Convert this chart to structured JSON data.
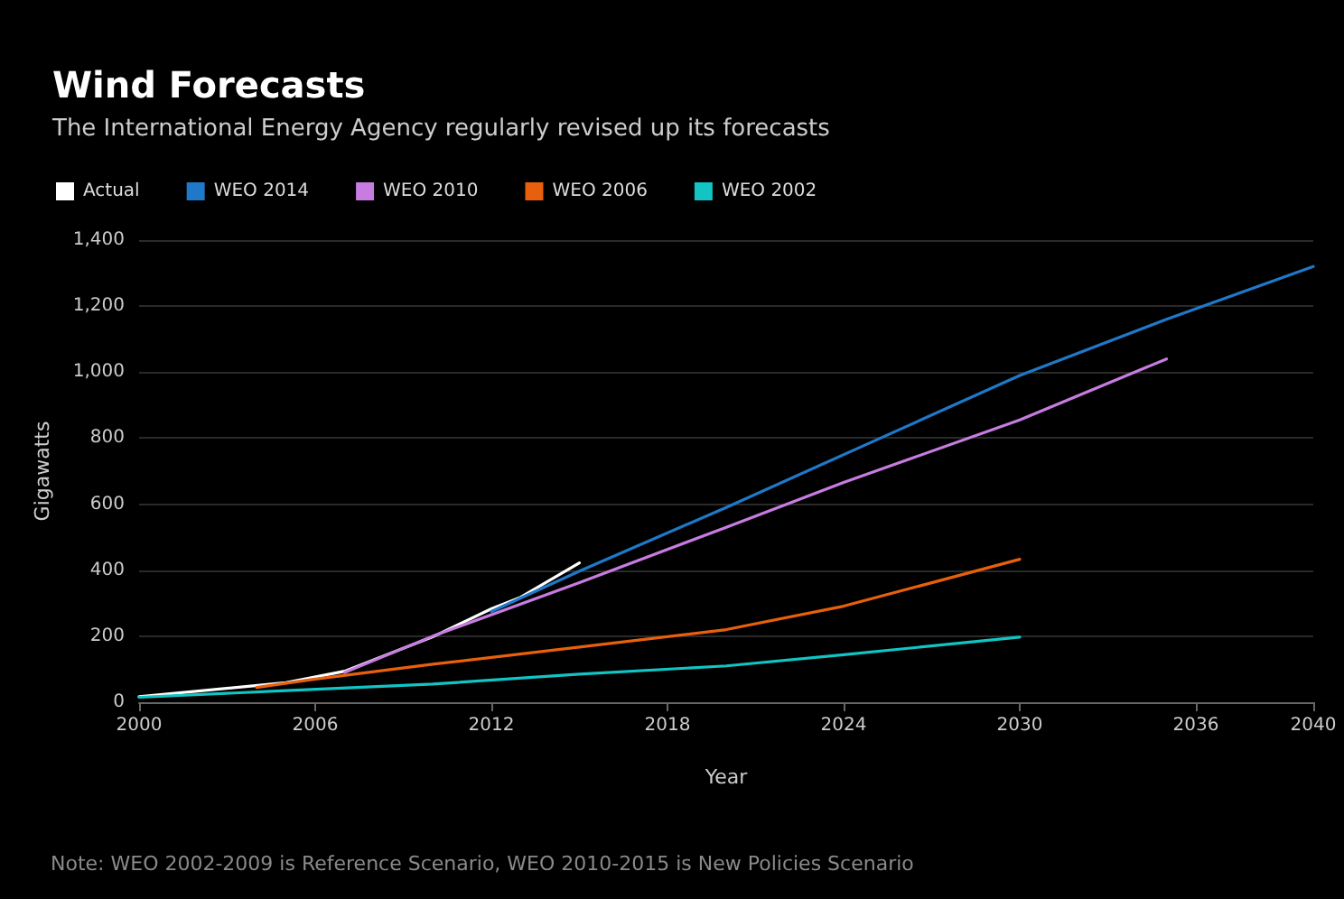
{
  "chart_data": {
    "type": "line",
    "title": "Wind Forecasts",
    "subtitle": "The International Energy Agency regularly revised up its forecasts",
    "xlabel": "Year",
    "ylabel": "Gigawatts",
    "annotations": [
      "Note: WEO 2002-2009 is Reference Scenario, WEO 2010-2015 is New Policies Scenario"
    ],
    "series": [
      {
        "name": "Actual",
        "color": "#ffffff",
        "x": [
          2000,
          2005,
          2007,
          2010,
          2012,
          2013,
          2014,
          2015
        ],
        "values": [
          17,
          59,
          94,
          198,
          283,
          318,
          370,
          422
        ]
      },
      {
        "name": "WEO 2014",
        "color": "#1f78c8",
        "x": [
          2012,
          2015,
          2020,
          2025,
          2030,
          2035,
          2040
        ],
        "values": [
          275,
          397,
          590,
          790,
          990,
          1160,
          1320
        ]
      },
      {
        "name": "WEO 2010",
        "color": "#c77ce0",
        "x": [
          2007,
          2010,
          2015,
          2020,
          2024,
          2030,
          2035
        ],
        "values": [
          90,
          200,
          362,
          530,
          666,
          855,
          1040
        ]
      },
      {
        "name": "WEO 2006",
        "color": "#e8600c",
        "x": [
          2004,
          2006,
          2010,
          2015,
          2020,
          2024,
          2030
        ],
        "values": [
          45,
          70,
          115,
          167,
          220,
          291,
          433
        ]
      },
      {
        "name": "WEO 2002",
        "color": "#12c4c4",
        "x": [
          2000,
          2005,
          2010,
          2015,
          2020,
          2024,
          2030
        ],
        "values": [
          15,
          35,
          55,
          85,
          110,
          144,
          197
        ]
      }
    ],
    "xlim": [
      2000,
      2040
    ],
    "xticks": [
      2000,
      2006,
      2012,
      2018,
      2024,
      2030,
      2036,
      2040
    ],
    "ylim": [
      0,
      1400
    ],
    "yticks": [
      0,
      200,
      400,
      600,
      800,
      {
        "value": 1000,
        "label": "1,000"
      },
      {
        "value": 1200,
        "label": "1,200"
      },
      {
        "value": 1400,
        "label": "1,400"
      }
    ],
    "grid": "y",
    "legend": "top left",
    "marker": "none",
    "line_style": "solid"
  }
}
